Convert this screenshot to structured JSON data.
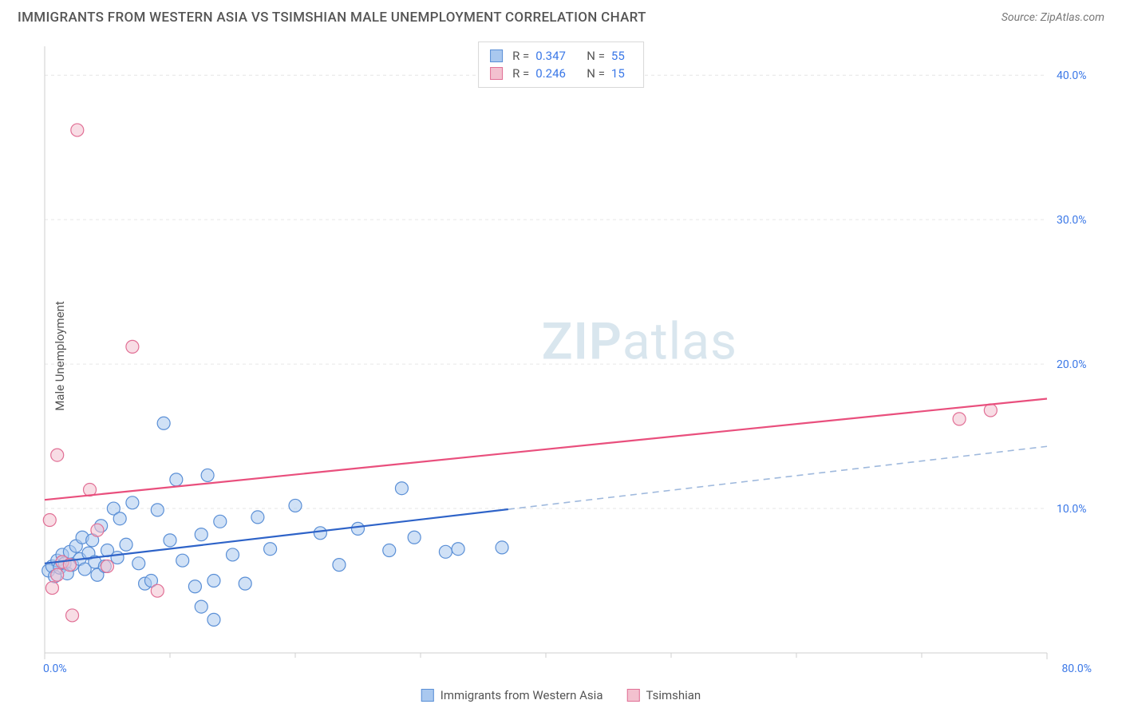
{
  "header": {
    "title": "IMMIGRANTS FROM WESTERN ASIA VS TSIMSHIAN MALE UNEMPLOYMENT CORRELATION CHART",
    "source_prefix": "Source: ",
    "source_name": "ZipAtlas.com"
  },
  "y_axis_label": "Male Unemployment",
  "watermark": {
    "bold": "ZIP",
    "rest": "atlas"
  },
  "chart": {
    "type": "scatter",
    "background_color": "#ffffff",
    "grid_color": "#e6e6e6",
    "axis_line_color": "#cfcfcf",
    "tick_color": "#cfcfcf",
    "tick_label_color": "#3b78e7",
    "tick_fontsize": 14,
    "xlim": [
      0,
      80
    ],
    "ylim": [
      0,
      42
    ],
    "x_ticks": [
      0,
      80
    ],
    "x_tick_labels": [
      "0.0%",
      "80.0%"
    ],
    "x_minor_ticks": [
      10,
      20,
      30,
      40,
      50,
      60,
      70
    ],
    "y_ticks": [
      10,
      20,
      30,
      40
    ],
    "y_tick_labels": [
      "10.0%",
      "20.0%",
      "30.0%",
      "40.0%"
    ],
    "y_axis_side": "right",
    "marker_radius": 8,
    "marker_opacity": 0.55,
    "series": [
      {
        "name": "Immigrants from Western Asia",
        "fill": "#a9c8ef",
        "stroke": "#5a8fd6",
        "line_color": "#2e63c8",
        "line_dash_color": "#9fb9dd",
        "R": "0.347",
        "N": "55",
        "trend": {
          "x1": 0,
          "y1": 6.2,
          "x2": 80,
          "y2": 14.3,
          "solid_until_x": 37
        },
        "points": [
          [
            0.3,
            5.7
          ],
          [
            0.6,
            6.0
          ],
          [
            0.8,
            5.3
          ],
          [
            1.0,
            6.4
          ],
          [
            1.2,
            5.9
          ],
          [
            1.4,
            6.8
          ],
          [
            1.6,
            6.2
          ],
          [
            1.8,
            5.5
          ],
          [
            2.0,
            7.0
          ],
          [
            2.2,
            6.1
          ],
          [
            2.5,
            7.4
          ],
          [
            2.8,
            6.5
          ],
          [
            3.0,
            8.0
          ],
          [
            3.2,
            5.8
          ],
          [
            3.5,
            6.9
          ],
          [
            3.8,
            7.8
          ],
          [
            4.0,
            6.3
          ],
          [
            4.2,
            5.4
          ],
          [
            4.5,
            8.8
          ],
          [
            4.8,
            6.0
          ],
          [
            5.0,
            7.1
          ],
          [
            5.5,
            10.0
          ],
          [
            5.8,
            6.6
          ],
          [
            6.0,
            9.3
          ],
          [
            6.5,
            7.5
          ],
          [
            7.0,
            10.4
          ],
          [
            7.5,
            6.2
          ],
          [
            8.0,
            4.8
          ],
          [
            8.5,
            5.0
          ],
          [
            9.0,
            9.9
          ],
          [
            9.5,
            15.9
          ],
          [
            10.0,
            7.8
          ],
          [
            10.5,
            12.0
          ],
          [
            11.0,
            6.4
          ],
          [
            12.0,
            4.6
          ],
          [
            12.5,
            8.2
          ],
          [
            12.5,
            3.2
          ],
          [
            13.0,
            12.3
          ],
          [
            13.5,
            5.0
          ],
          [
            14.0,
            9.1
          ],
          [
            13.5,
            2.3
          ],
          [
            15.0,
            6.8
          ],
          [
            16.0,
            4.8
          ],
          [
            17.0,
            9.4
          ],
          [
            18.0,
            7.2
          ],
          [
            20.0,
            10.2
          ],
          [
            22.0,
            8.3
          ],
          [
            23.5,
            6.1
          ],
          [
            25.0,
            8.6
          ],
          [
            27.5,
            7.1
          ],
          [
            28.5,
            11.4
          ],
          [
            29.5,
            8.0
          ],
          [
            32.0,
            7.0
          ],
          [
            33.0,
            7.2
          ],
          [
            36.5,
            7.3
          ]
        ]
      },
      {
        "name": "Tsimshian",
        "fill": "#f3c1cf",
        "stroke": "#e16f95",
        "line_color": "#e94f7d",
        "R": "0.246",
        "N": "15",
        "trend": {
          "x1": 0,
          "y1": 10.6,
          "x2": 80,
          "y2": 17.6,
          "solid_until_x": 80
        },
        "points": [
          [
            0.4,
            9.2
          ],
          [
            0.6,
            4.5
          ],
          [
            1.0,
            5.4
          ],
          [
            1.0,
            13.7
          ],
          [
            1.4,
            6.3
          ],
          [
            2.0,
            6.1
          ],
          [
            2.2,
            2.6
          ],
          [
            2.6,
            36.2
          ],
          [
            3.6,
            11.3
          ],
          [
            4.2,
            8.5
          ],
          [
            5.0,
            6.0
          ],
          [
            7.0,
            21.2
          ],
          [
            9.0,
            4.3
          ],
          [
            73.0,
            16.2
          ],
          [
            75.5,
            16.8
          ]
        ]
      }
    ]
  },
  "stats_legend": {
    "rows": [
      {
        "swatch_fill": "#a9c8ef",
        "swatch_stroke": "#5a8fd6",
        "r_label": "R =",
        "r_val": "0.347",
        "n_label": "N =",
        "n_val": "55"
      },
      {
        "swatch_fill": "#f3c1cf",
        "swatch_stroke": "#e16f95",
        "r_label": "R =",
        "r_val": "0.246",
        "n_label": "N =",
        "n_val": "15"
      }
    ]
  },
  "bottom_legend": [
    {
      "swatch_fill": "#a9c8ef",
      "swatch_stroke": "#5a8fd6",
      "label": "Immigrants from Western Asia"
    },
    {
      "swatch_fill": "#f3c1cf",
      "swatch_stroke": "#e16f95",
      "label": "Tsimshian"
    }
  ]
}
